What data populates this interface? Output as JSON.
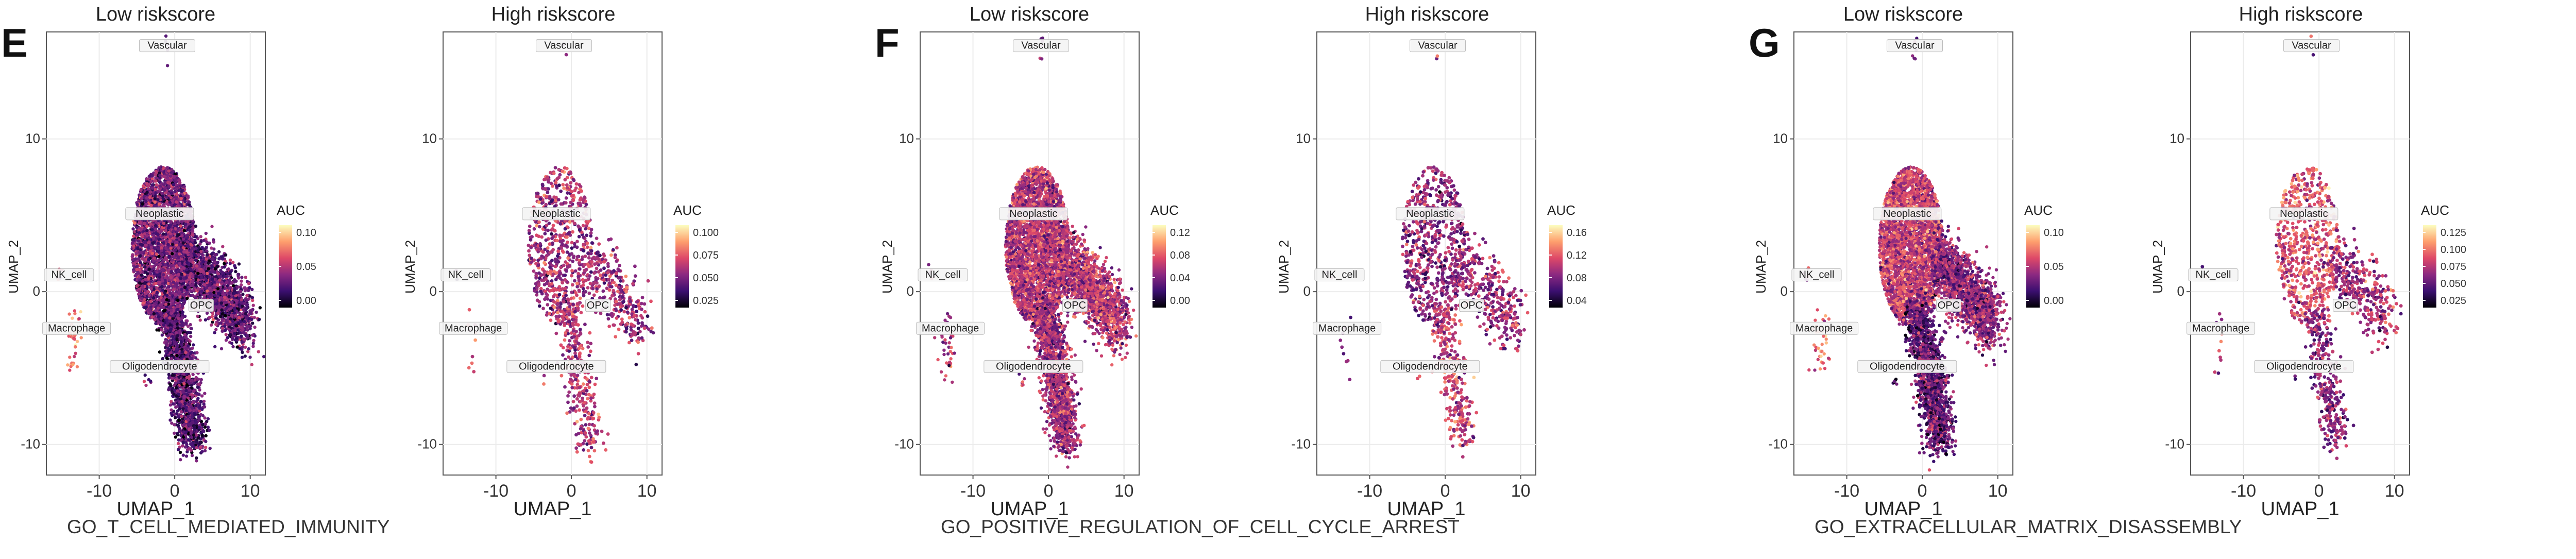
{
  "panels": [
    {
      "letter": "E",
      "title": "GO_T_CELL_MEDIATED_IMMUNITY",
      "subplots": [
        {
          "title": "Low riskscore",
          "legend_title": "AUC",
          "legend_ticks": [
            "0.10",
            "0.05",
            "0.00"
          ]
        },
        {
          "title": "High riskscore",
          "legend_title": "AUC",
          "legend_ticks": [
            "0.100",
            "0.075",
            "0.050",
            "0.025"
          ]
        }
      ]
    },
    {
      "letter": "F",
      "title": "GO_POSITIVE_REGULATION_OF_CELL_CYCLE_ARREST",
      "subplots": [
        {
          "title": "Low riskscore",
          "legend_title": "AUC",
          "legend_ticks": [
            "0.12",
            "0.08",
            "0.04",
            "0.00"
          ]
        },
        {
          "title": "High riskscore",
          "legend_title": "AUC",
          "legend_ticks": [
            "0.16",
            "0.12",
            "0.08",
            "0.04"
          ]
        }
      ]
    },
    {
      "letter": "G",
      "title": "GO_EXTRACELLULAR_MATRIX_DISASSEMBLY",
      "subplots": [
        {
          "title": "Low riskscore",
          "legend_title": "AUC",
          "legend_ticks": [
            "0.10",
            "0.05",
            "0.00"
          ]
        },
        {
          "title": "High riskscore",
          "legend_title": "AUC",
          "legend_ticks": [
            "0.125",
            "0.100",
            "0.075",
            "0.050",
            "0.025"
          ]
        }
      ]
    }
  ],
  "chart_data": {
    "type": "scatter",
    "xlabel": "UMAP_1",
    "ylabel": "UMAP_2",
    "x_ticks": [
      -10,
      0,
      10
    ],
    "y_ticks": [
      -10,
      0,
      10
    ],
    "xlim": [
      -17,
      12
    ],
    "ylim": [
      -12,
      17
    ],
    "cell_type_labels": [
      {
        "name": "Vascular",
        "x": -1,
        "y": 16
      },
      {
        "name": "Neoplastic",
        "x": -2,
        "y": 5
      },
      {
        "name": "NK_cell",
        "x": -14,
        "y": 1
      },
      {
        "name": "Macrophage",
        "x": -13,
        "y": -2.5
      },
      {
        "name": "OPC",
        "x": 3.5,
        "y": -1
      },
      {
        "name": "Oligodendrocyte",
        "x": -2,
        "y": -5
      }
    ],
    "colormap": [
      "#000004",
      "#3b0f70",
      "#8c2981",
      "#de4968",
      "#fe9f6d",
      "#fcfdbf"
    ],
    "colors": {
      "background": "#ffffff",
      "grid": "#ebebeb",
      "border": "#555555"
    }
  }
}
